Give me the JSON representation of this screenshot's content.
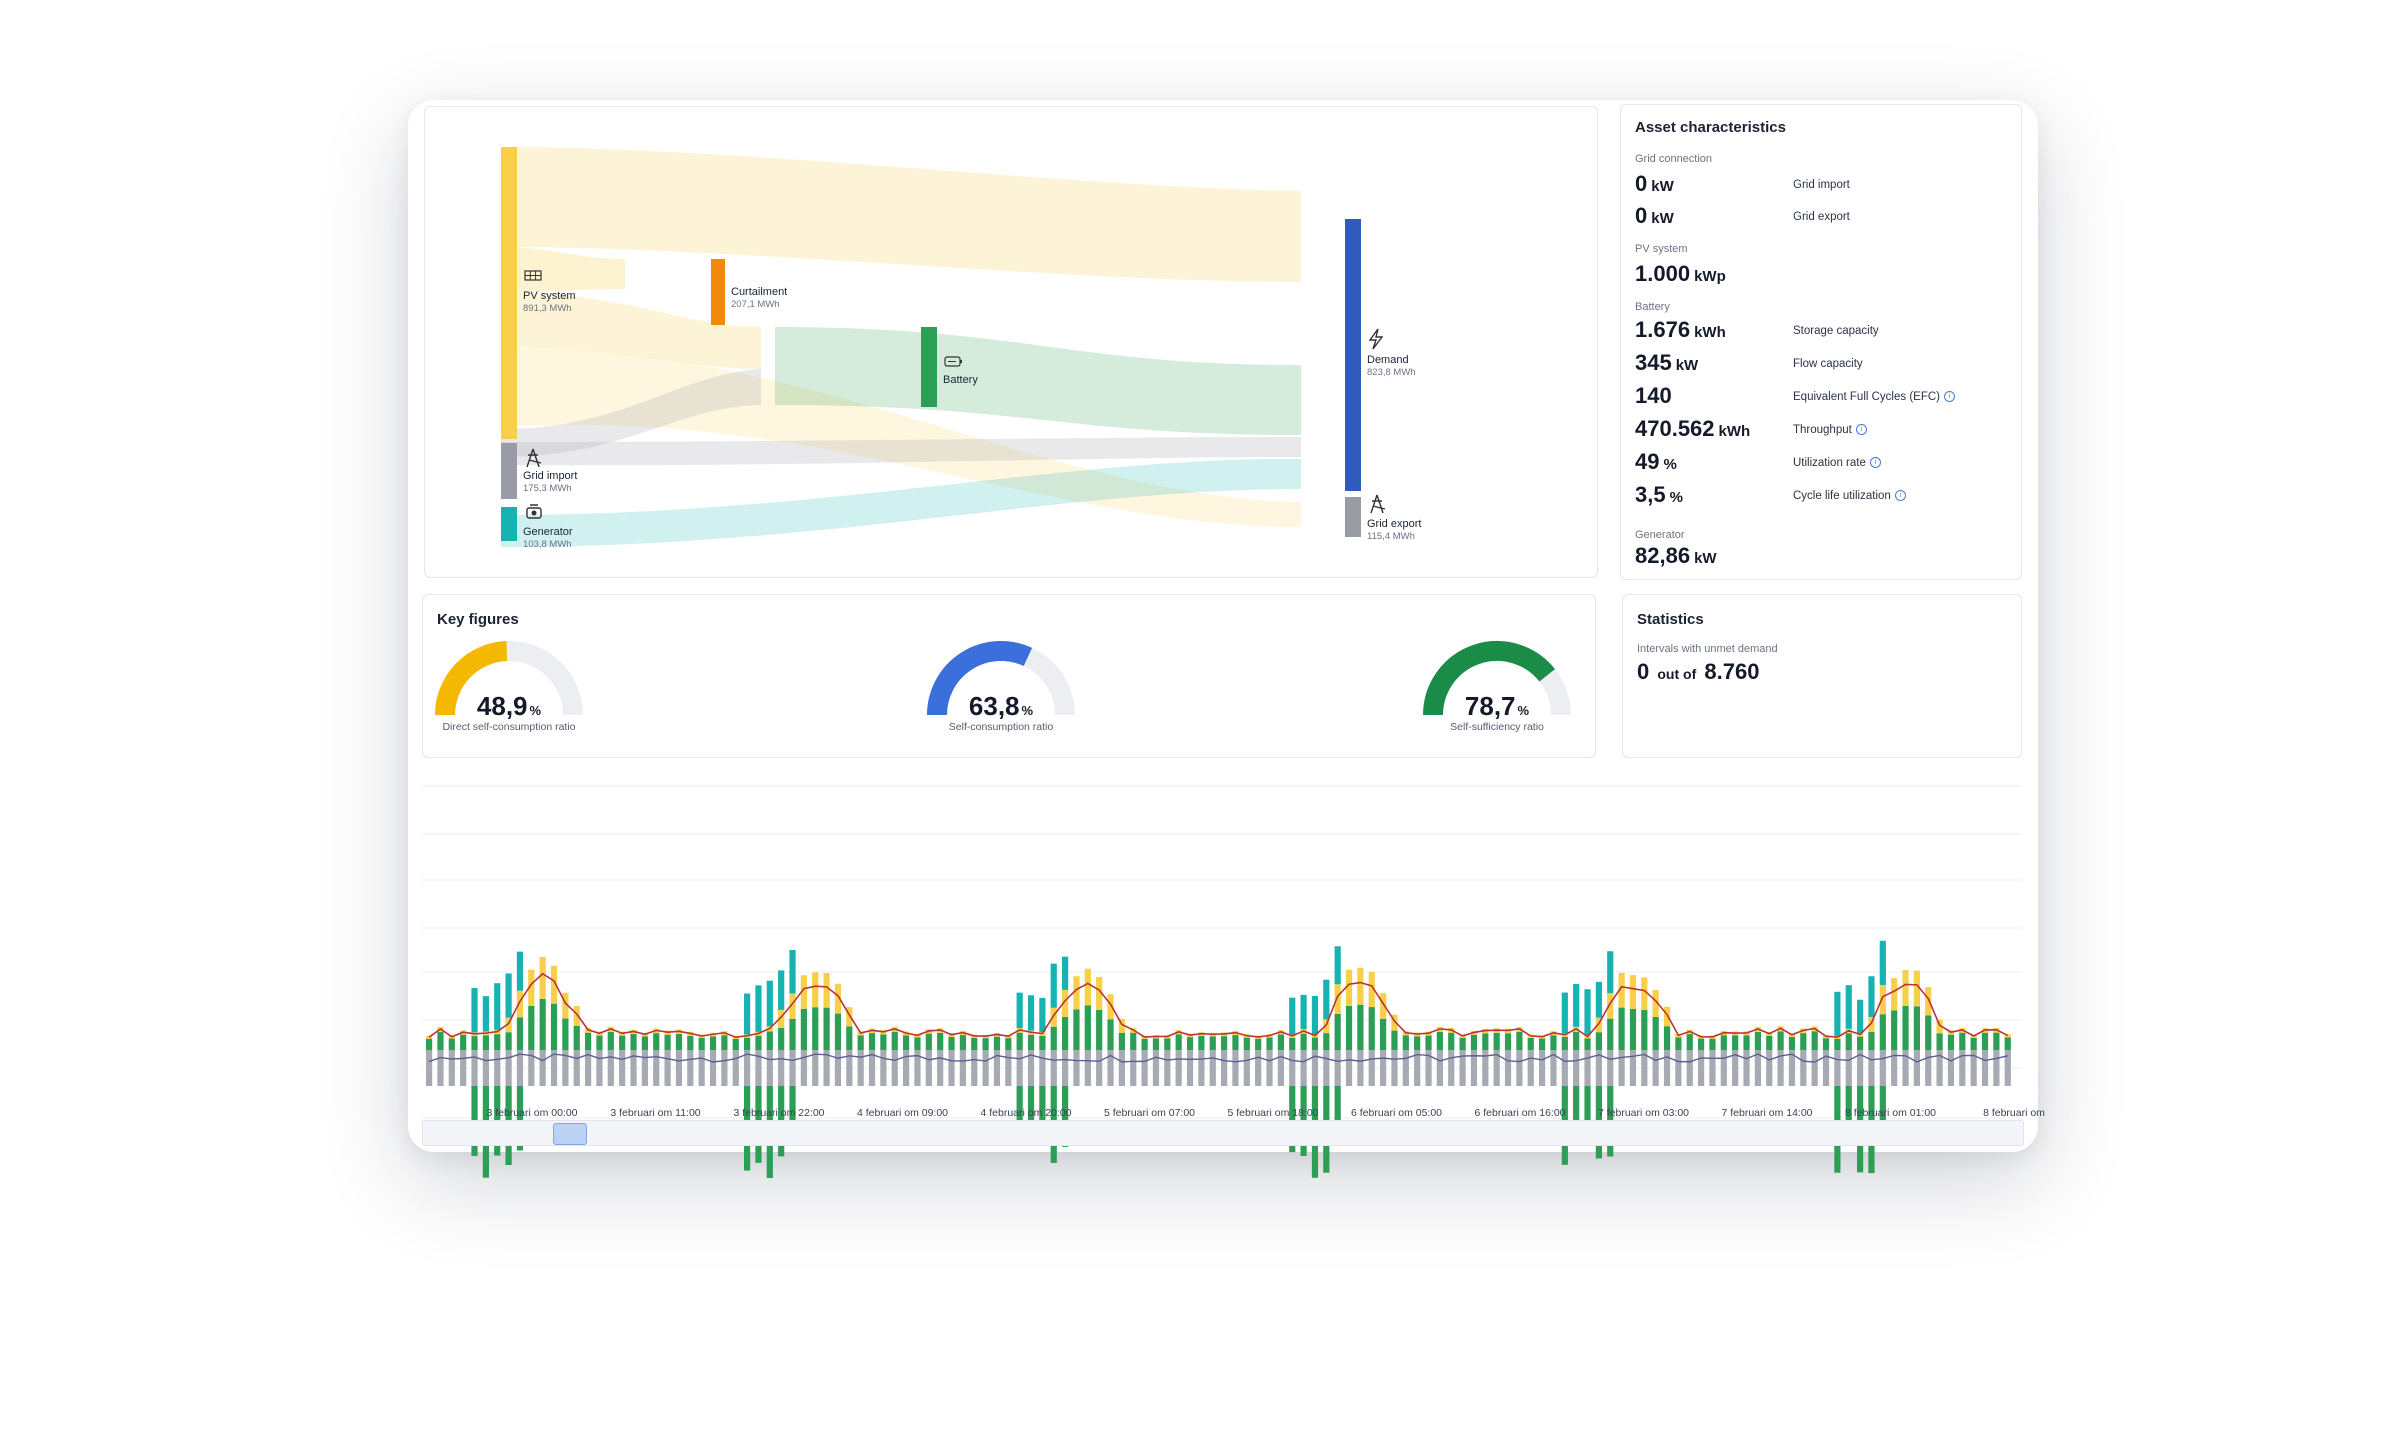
{
  "sankey": {
    "nodes": [
      {
        "id": "pv",
        "label": "PV system",
        "value": "891,3 MWh",
        "icon": "solar-panel-icon",
        "color": "#f7cf48"
      },
      {
        "id": "curtailment",
        "label": "Curtailment",
        "value": "207,1 MWh",
        "icon": "",
        "color": "#ef8a0c"
      },
      {
        "id": "battery",
        "label": "Battery",
        "value": "",
        "icon": "battery-icon",
        "color": "#2c9e55"
      },
      {
        "id": "grid_import",
        "label": "Grid import",
        "value": "175,3 MWh",
        "icon": "grid-tower-icon",
        "color": "#9a9ca5"
      },
      {
        "id": "generator",
        "label": "Generator",
        "value": "103,8 MWh",
        "icon": "generator-icon",
        "color": "#17b3b3"
      },
      {
        "id": "demand",
        "label": "Demand",
        "value": "823,8 MWh",
        "icon": "lightning-icon",
        "color": "#2f5bbd"
      },
      {
        "id": "grid_export",
        "label": "Grid export",
        "value": "115,4 MWh",
        "icon": "grid-tower-icon",
        "color": "#9a9ca5"
      }
    ]
  },
  "asset": {
    "title": "Asset characteristics",
    "grid_section": "Grid connection",
    "grid_import_value": "0",
    "grid_import_unit": "kW",
    "grid_import_label": "Grid import",
    "grid_export_value": "0",
    "grid_export_unit": "kW",
    "grid_export_label": "Grid export",
    "pv_section": "PV system",
    "pv_value": "1.000",
    "pv_unit": "kWp",
    "battery_section": "Battery",
    "battery_rows": [
      {
        "value": "1.676",
        "unit": "kWh",
        "label": "Storage capacity",
        "info": false
      },
      {
        "value": "345",
        "unit": "kW",
        "label": "Flow capacity",
        "info": false
      },
      {
        "value": "140",
        "unit": "",
        "label": "Equivalent Full Cycles (EFC)",
        "info": true
      },
      {
        "value": "470.562",
        "unit": "kWh",
        "label": "Throughput",
        "info": true
      },
      {
        "value": "49",
        "unit": "%",
        "label": "Utilization rate",
        "info": true
      },
      {
        "value": "3,5",
        "unit": "%",
        "label": "Cycle life utilization",
        "info": true
      }
    ],
    "generator_section": "Generator",
    "generator_value": "82,86",
    "generator_unit": "kW"
  },
  "key_figures": {
    "title": "Key figures",
    "gauges": [
      {
        "value": "48,9",
        "unit": "%",
        "fraction": 0.489,
        "label": "Direct self-consumption ratio",
        "color": "#f5b800"
      },
      {
        "value": "63,8",
        "unit": "%",
        "fraction": 0.638,
        "label": "Self-consumption ratio",
        "color": "#3a6fdc"
      },
      {
        "value": "78,7",
        "unit": "%",
        "fraction": 0.787,
        "label": "Self-sufficiency ratio",
        "color": "#1a8c48"
      }
    ]
  },
  "statistics": {
    "title": "Statistics",
    "unmet_label": "Intervals with unmet demand",
    "unmet_value": "0",
    "unmet_connector": "out of",
    "unmet_total": "8.760"
  },
  "chart_data": {
    "type": "bar",
    "x_tick_labels": [
      "3 februari om 00:00",
      "3 februari om 11:00",
      "3 februari om 22:00",
      "4 februari om 09:00",
      "4 februari om 20:00",
      "5 februari om 07:00",
      "5 februari om 18:00",
      "6 februari om 05:00",
      "6 februari om 16:00",
      "7 februari om 03:00",
      "7 februari om 14:00",
      "8 februari om 01:00",
      "8 februari om"
    ],
    "grid": true,
    "colors": {
      "generator": "#17b3b3",
      "battery": "#2c9e55",
      "pv": "#f7cf48",
      "grid": "#a7a9b3",
      "demand_line": "#b8333a",
      "grid_line": "#5a6091"
    }
  }
}
